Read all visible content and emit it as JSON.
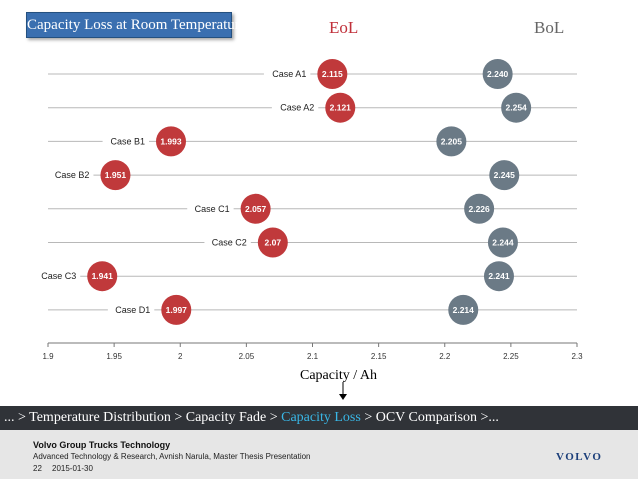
{
  "slide": {
    "title": "Capacity Loss at Room Temperature",
    "breadcrumb": {
      "before": "... > Temperature Distribution > Capacity Fade > ",
      "active": "Capacity Loss",
      "after": " > OCV Comparison >..."
    },
    "footer": {
      "org": "Volvo Group Trucks Technology",
      "subtitle": "Advanced Technology & Research, Avnish Narula, Master Thesis Presentation",
      "page": "22",
      "date": "2015-01-30",
      "logo": "VOLVO"
    }
  },
  "colors": {
    "eol": "#c0393b",
    "bol": "#6b7a86",
    "grid": "#b8b8b8",
    "accent": "#39b7e6"
  },
  "chart_data": {
    "type": "scatter",
    "xlabel": "Capacity / Ah",
    "xlim": [
      1.9,
      2.3
    ],
    "xticks": [
      "1.9",
      "1.95",
      "2",
      "2.05",
      "2.1",
      "2.15",
      "2.2",
      "2.25",
      "2.3"
    ],
    "categories": [
      "Case A1",
      "Case A2",
      "Case B1",
      "Case B2",
      "Case C1",
      "Case C2",
      "Case C3",
      "Case D1"
    ],
    "series": [
      {
        "name": "EoL",
        "values": [
          2.115,
          2.121,
          1.993,
          1.951,
          2.057,
          2.07,
          1.941,
          1.997
        ],
        "labels": [
          "2.115",
          "2.121",
          "1.993",
          "1.951",
          "2.057",
          "2.07",
          "1.941",
          "1.997"
        ]
      },
      {
        "name": "BoL",
        "values": [
          2.24,
          2.254,
          2.205,
          2.245,
          2.226,
          2.244,
          2.241,
          2.214
        ],
        "labels": [
          "2.240",
          "2.254",
          "2.205",
          "2.245",
          "2.226",
          "2.244",
          "2.241",
          "2.214"
        ]
      }
    ]
  }
}
